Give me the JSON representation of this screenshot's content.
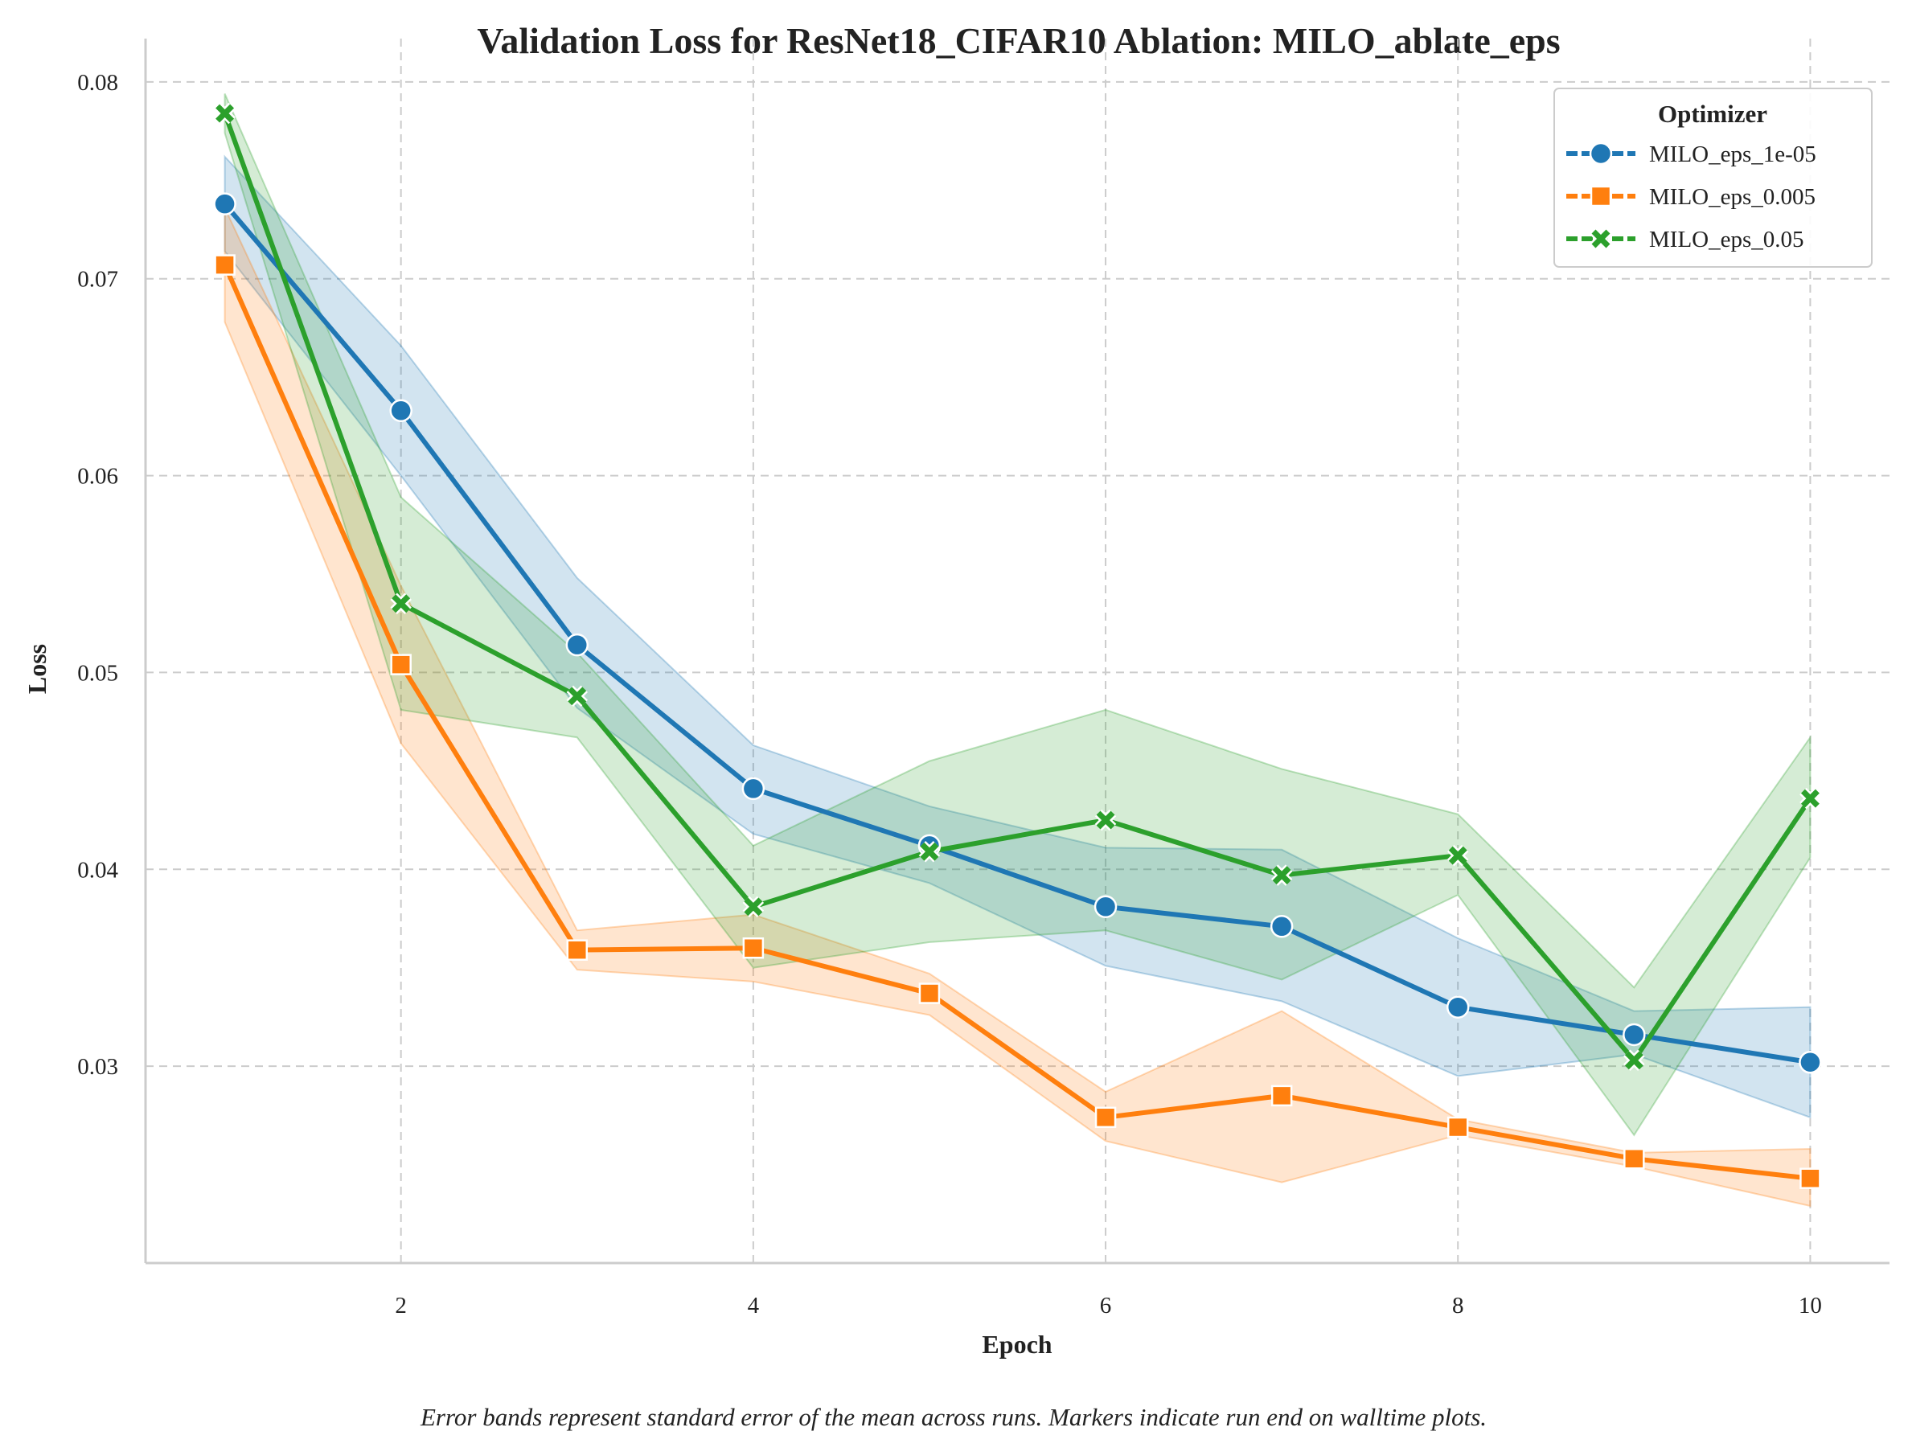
{
  "chart_data": {
    "type": "line",
    "title": "Validation Loss for ResNet18_CIFAR10 Ablation: MILO_ablate_eps",
    "xlabel": "Epoch",
    "ylabel": "Loss",
    "xlim": [
      0.55,
      10.45
    ],
    "ylim": [
      0.02,
      0.0822
    ],
    "x_ticks": [
      2,
      4,
      6,
      8,
      10
    ],
    "x_tick_labels": [
      "2",
      "4",
      "6",
      "8",
      "10"
    ],
    "y_ticks": [
      0.03,
      0.04,
      0.05,
      0.06,
      0.07,
      0.08
    ],
    "y_tick_labels": [
      "0.03",
      "0.04",
      "0.05",
      "0.06",
      "0.07",
      "0.08"
    ],
    "grid": true,
    "legend": {
      "title": "Optimizer",
      "placement": "top-right"
    },
    "x": [
      1,
      2,
      3,
      4,
      5,
      6,
      7,
      8,
      9,
      10
    ],
    "series": [
      {
        "name": "MILO_eps_1e-05",
        "color": "#1f77b4",
        "marker": "circle",
        "values": [
          0.0738,
          0.0633,
          0.0514,
          0.0441,
          0.0412,
          0.0381,
          0.0371,
          0.033,
          0.0316,
          0.0302
        ],
        "lower": [
          0.0714,
          0.06,
          0.0482,
          0.0418,
          0.0393,
          0.0351,
          0.0333,
          0.0295,
          0.0306,
          0.0274
        ],
        "upper": [
          0.0762,
          0.0666,
          0.0548,
          0.0463,
          0.0432,
          0.0411,
          0.041,
          0.0365,
          0.0328,
          0.033
        ]
      },
      {
        "name": "MILO_eps_0.005",
        "color": "#ff7f0e",
        "marker": "square",
        "values": [
          0.0707,
          0.0504,
          0.0359,
          0.036,
          0.0337,
          0.0274,
          0.0285,
          0.0269,
          0.0253,
          0.0243
        ],
        "lower": [
          0.0678,
          0.0464,
          0.0349,
          0.0343,
          0.0326,
          0.0262,
          0.0241,
          0.0265,
          0.0249,
          0.0229
        ],
        "upper": [
          0.0736,
          0.0544,
          0.0369,
          0.0377,
          0.0347,
          0.0287,
          0.0328,
          0.0273,
          0.0256,
          0.0258
        ]
      },
      {
        "name": "MILO_eps_0.05",
        "color": "#2ca02c",
        "marker": "x",
        "values": [
          0.0784,
          0.0535,
          0.0488,
          0.0381,
          0.0409,
          0.0425,
          0.0397,
          0.0407,
          0.0303,
          0.0436
        ],
        "lower": [
          0.0774,
          0.0481,
          0.0467,
          0.035,
          0.0363,
          0.0369,
          0.0344,
          0.0387,
          0.0265,
          0.0406
        ],
        "upper": [
          0.0794,
          0.0589,
          0.051,
          0.0412,
          0.0455,
          0.0481,
          0.0451,
          0.0428,
          0.034,
          0.0467
        ]
      }
    ]
  },
  "caption": "Error bands represent standard error of the mean across runs. Markers indicate run end on walltime plots."
}
